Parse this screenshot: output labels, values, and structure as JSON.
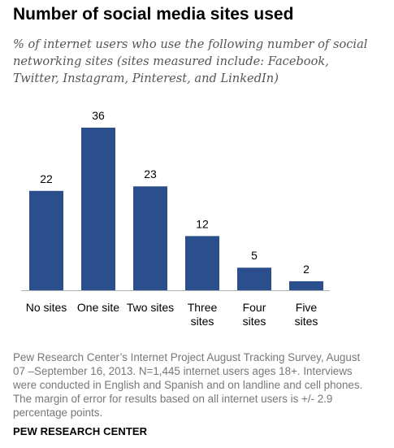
{
  "chart_data": {
    "type": "bar",
    "title": "Number of social media sites used",
    "subtitle": "% of internet users who use the following number of social networking sites (sites measured include: Facebook, Twitter, Instagram, Pinterest, and LinkedIn)",
    "categories": [
      "No sites",
      "One site",
      "Two sites",
      "Three sites",
      "Four sites",
      "Five sites"
    ],
    "values": [
      22,
      36,
      23,
      12,
      5,
      2
    ],
    "ylim": [
      0,
      36
    ],
    "grid": false,
    "bar_color": "#2b4f8c"
  },
  "notes": "Pew Research Center’s Internet Project August Tracking Survey, August 07 –September 16, 2013.  N=1,445 internet users ages 18+. Interviews were conducted in English and Spanish and on landline and cell phones. The margin of error for results based on all internet users is +/- 2.9 percentage points.",
  "source": "PEW RESEARCH CENTER"
}
